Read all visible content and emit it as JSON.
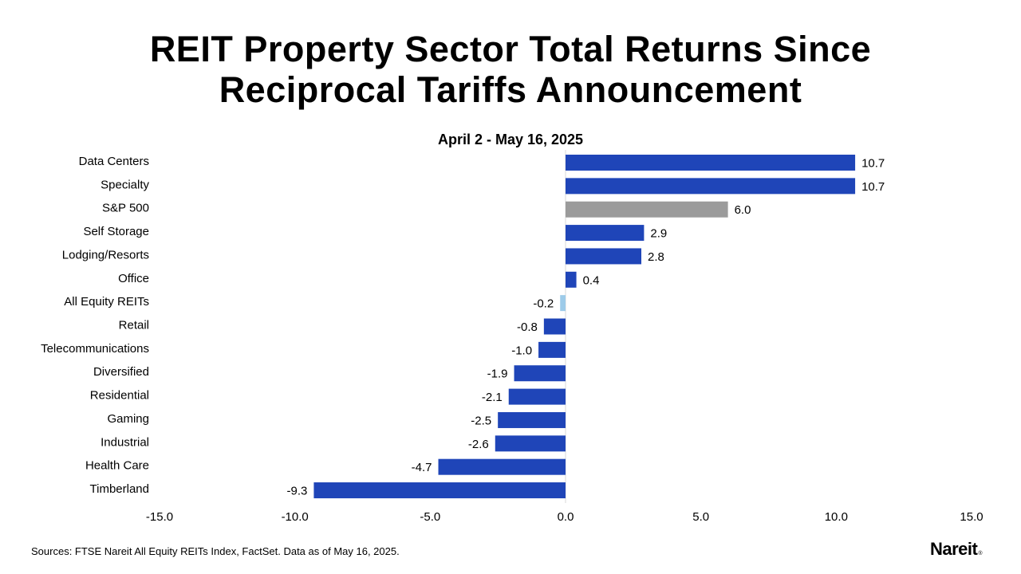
{
  "title_lines": [
    "REIT Property Sector Total Returns Since",
    "Reciprocal Tariffs Announcement"
  ],
  "source": "Sources: FTSE Nareit All Equity REITs Index, FactSet. Data as of May 16, 2025.",
  "logo": {
    "text": "Nareit",
    "mark": "®"
  },
  "colors": {
    "reit": "#1f45b8",
    "sp500": "#9b9b9b",
    "all_equity": "#9dcbe9",
    "zero_line": "#d9d9d9"
  },
  "chart_data": {
    "type": "bar",
    "orientation": "horizontal",
    "title": "REIT Property Sector Total Returns Since Reciprocal Tariffs Announcement",
    "subtitle": "April 2 - May 16, 2025",
    "xlabel": "",
    "ylabel": "",
    "xlim": [
      -15,
      15
    ],
    "xticks": [
      -15,
      -10,
      -5,
      0,
      5,
      10,
      15
    ],
    "xtick_labels": [
      "-15.0",
      "-10.0",
      "-5.0",
      "0.0",
      "5.0",
      "10.0",
      "15.0"
    ],
    "grid": false,
    "legend": "none",
    "categories": [
      "Data Centers",
      "Specialty",
      "S&P 500",
      "Self Storage",
      "Lodging/Resorts",
      "Office",
      "All Equity REITs",
      "Retail",
      "Telecommunications",
      "Diversified",
      "Residential",
      "Gaming",
      "Industrial",
      "Health Care",
      "Timberland"
    ],
    "values": [
      10.7,
      10.7,
      6.0,
      2.9,
      2.8,
      0.4,
      -0.2,
      -0.8,
      -1.0,
      -1.9,
      -2.1,
      -2.5,
      -2.6,
      -4.7,
      -9.3
    ],
    "value_labels": [
      "10.7",
      "10.7",
      "6.0",
      "2.9",
      "2.8",
      "0.4",
      "-0.2",
      "-0.8",
      "-1.0",
      "-1.9",
      "-2.1",
      "-2.5",
      "-2.6",
      "-4.7",
      "-9.3"
    ],
    "bar_groups": [
      "reit",
      "reit",
      "sp500",
      "reit",
      "reit",
      "reit",
      "all_equity",
      "reit",
      "reit",
      "reit",
      "reit",
      "reit",
      "reit",
      "reit",
      "reit"
    ]
  }
}
